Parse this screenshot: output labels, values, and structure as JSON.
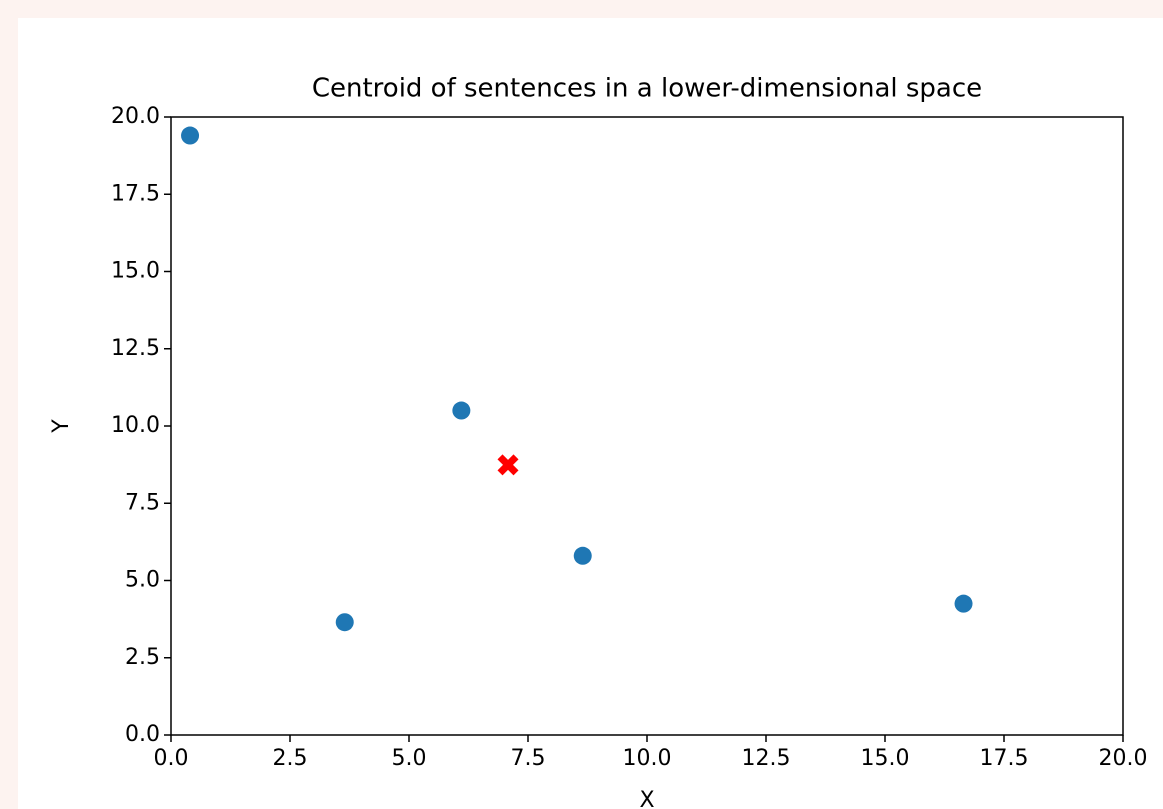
{
  "chart_data": {
    "type": "scatter",
    "title": "Centroid of sentences in a lower-dimensional space",
    "xlabel": "X",
    "ylabel": "Y",
    "series": [
      {
        "color": "#1f77b4",
        "marker": "circle",
        "x": [
          0.4,
          3.65,
          6.1,
          8.65,
          16.65
        ],
        "values": [
          19.4,
          3.65,
          10.5,
          5.8,
          4.25
        ]
      },
      {
        "color": "#ff0000",
        "marker": "x",
        "x": [
          7.08
        ],
        "values": [
          8.74
        ]
      }
    ],
    "xlim": [
      0,
      20
    ],
    "ylim": [
      0,
      20
    ],
    "xticks": [
      {
        "value": 0,
        "label": "0.0"
      },
      {
        "value": 2.5,
        "label": "2.5"
      },
      {
        "value": 5,
        "label": "5.0"
      },
      {
        "value": 7.5,
        "label": "7.5"
      },
      {
        "value": 10,
        "label": "10.0"
      },
      {
        "value": 12.5,
        "label": "12.5"
      },
      {
        "value": 15,
        "label": "15.0"
      },
      {
        "value": 17.5,
        "label": "17.5"
      },
      {
        "value": 20,
        "label": "20.0"
      }
    ],
    "yticks": [
      {
        "value": 0,
        "label": "0.0"
      },
      {
        "value": 2.5,
        "label": "2.5"
      },
      {
        "value": 5,
        "label": "5.0"
      },
      {
        "value": 7.5,
        "label": "7.5"
      },
      {
        "value": 10,
        "label": "10.0"
      },
      {
        "value": 12.5,
        "label": "12.5"
      },
      {
        "value": 15,
        "label": "15.0"
      },
      {
        "value": 17.5,
        "label": "17.5"
      },
      {
        "value": 20,
        "label": "20.0"
      }
    ],
    "grid": false
  }
}
